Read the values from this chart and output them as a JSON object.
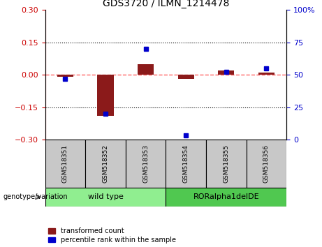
{
  "title": "GDS3720 / ILMN_1214478",
  "samples": [
    "GSM518351",
    "GSM518352",
    "GSM518353",
    "GSM518354",
    "GSM518355",
    "GSM518356"
  ],
  "red_values": [
    -0.01,
    -0.19,
    0.05,
    -0.02,
    0.02,
    0.01
  ],
  "blue_values": [
    47,
    20,
    70,
    3,
    52,
    55
  ],
  "ylim_left": [
    -0.3,
    0.3
  ],
  "ylim_right": [
    0,
    100
  ],
  "yticks_left": [
    -0.3,
    -0.15,
    0,
    0.15,
    0.3
  ],
  "yticks_right": [
    0,
    25,
    50,
    75,
    100
  ],
  "group_wt_label": "wild type",
  "group_wt_color": "#90EE90",
  "group_ror_label": "RORalpha1delDE",
  "group_ror_color": "#50C850",
  "legend_red": "transformed count",
  "legend_blue": "percentile rank within the sample",
  "bar_color": "#8B1A1A",
  "dot_color": "#0000CC",
  "zero_line_color": "#FF6666",
  "grid_color": "#000000",
  "background_color": "#FFFFFF",
  "plot_bg": "#FFFFFF",
  "left_label_color": "#CC0000",
  "right_label_color": "#0000CC",
  "bar_width": 0.4,
  "genotype_label": "genotype/variation",
  "label_box_color": "#C8C8C8"
}
